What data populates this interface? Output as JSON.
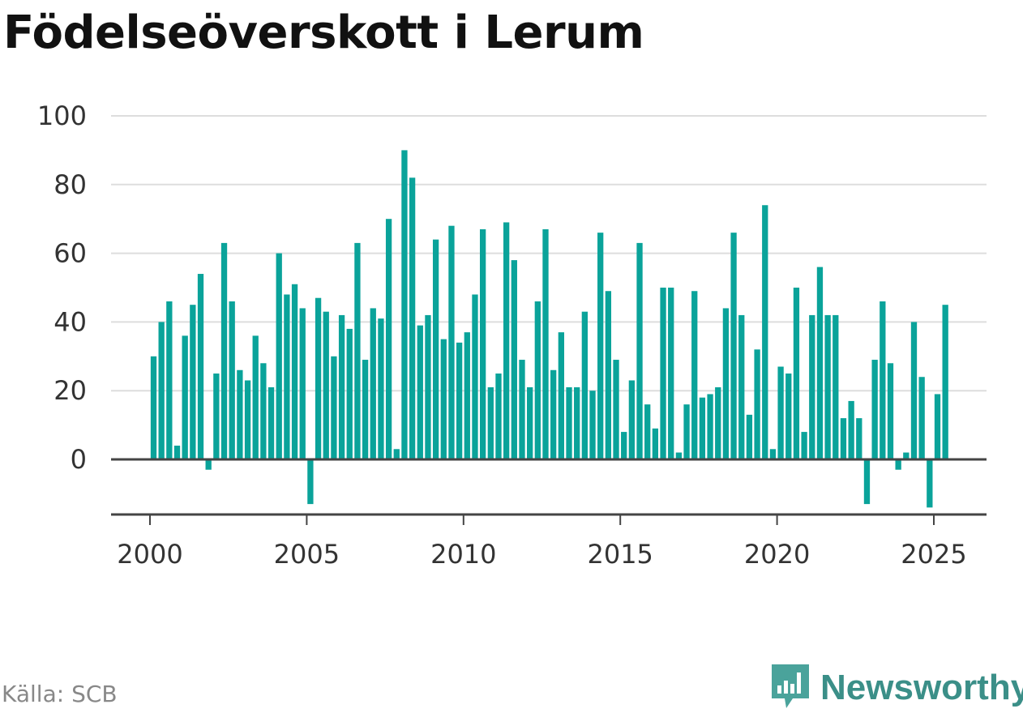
{
  "title": "Födelseöverskott i Lerum",
  "source": "Källa: SCB",
  "brand": {
    "name": "Newsworthy",
    "icon": "bar-chart-speech-bubble-icon"
  },
  "colors": {
    "bar": "#0aa39a",
    "grid": "#dddddd",
    "axis": "#444444",
    "tick_text": "#333333",
    "brand": "#3b8f88",
    "source": "#888888"
  },
  "chart_data": {
    "type": "bar",
    "title": "Födelseöverskott i Lerum",
    "xlabel": "",
    "ylabel": "",
    "frequency": "quarterly",
    "start": "2000-Q1",
    "x_ticks": [
      "2000",
      "2005",
      "2010",
      "2015",
      "2020",
      "2025"
    ],
    "y_ticks": [
      0,
      20,
      40,
      60,
      80,
      100
    ],
    "ylim": [
      -16,
      100
    ],
    "grid": true,
    "legend": "none",
    "values": [
      30,
      40,
      46,
      4,
      36,
      45,
      54,
      -3,
      25,
      63,
      46,
      26,
      23,
      36,
      28,
      21,
      60,
      48,
      51,
      44,
      -13,
      47,
      43,
      30,
      42,
      38,
      63,
      29,
      44,
      41,
      70,
      3,
      90,
      82,
      39,
      42,
      64,
      35,
      68,
      34,
      37,
      48,
      67,
      21,
      25,
      69,
      58,
      29,
      21,
      46,
      67,
      26,
      37,
      21,
      21,
      43,
      20,
      66,
      49,
      29,
      8,
      23,
      63,
      16,
      9,
      50,
      50,
      2,
      16,
      49,
      18,
      19,
      21,
      44,
      66,
      42,
      13,
      32,
      74,
      3,
      27,
      25,
      50,
      8,
      42,
      56,
      42,
      42,
      12,
      17,
      12,
      -13,
      29,
      46,
      28,
      -3,
      2,
      40,
      24,
      -14,
      19,
      45
    ]
  }
}
